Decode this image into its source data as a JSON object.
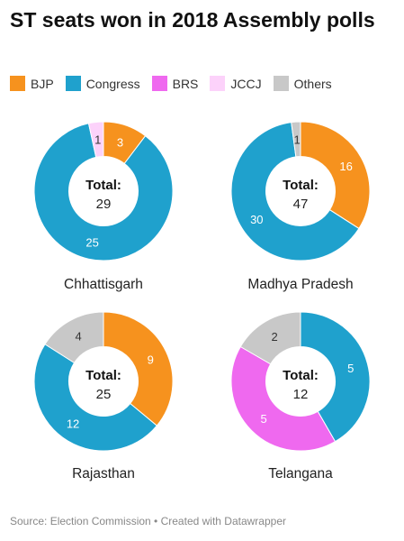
{
  "title": "ST seats won in 2018 Assembly polls",
  "legend": [
    {
      "name": "BJP",
      "color": "#f6921e"
    },
    {
      "name": "Congress",
      "color": "#1fa1cd"
    },
    {
      "name": "BRS",
      "color": "#ef69ef"
    },
    {
      "name": "JCCJ",
      "color": "#fcd2fa"
    },
    {
      "name": "Others",
      "color": "#c8c8c8"
    }
  ],
  "total_label": "Total:",
  "chart_data": [
    {
      "type": "pie",
      "state": "Chhattisgarh",
      "total": 29,
      "slices": [
        {
          "party": "BJP",
          "value": 3,
          "color": "#f6921e"
        },
        {
          "party": "Congress",
          "value": 25,
          "color": "#1fa1cd"
        },
        {
          "party": "JCCJ",
          "value": 1,
          "color": "#fcd2fa"
        }
      ]
    },
    {
      "type": "pie",
      "state": "Madhya Pradesh",
      "total": 47,
      "slices": [
        {
          "party": "BJP",
          "value": 16,
          "color": "#f6921e"
        },
        {
          "party": "Congress",
          "value": 30,
          "color": "#1fa1cd"
        },
        {
          "party": "Others",
          "value": 1,
          "color": "#c8c8c8"
        }
      ]
    },
    {
      "type": "pie",
      "state": "Rajasthan",
      "total": 25,
      "slices": [
        {
          "party": "BJP",
          "value": 9,
          "color": "#f6921e"
        },
        {
          "party": "Congress",
          "value": 12,
          "color": "#1fa1cd"
        },
        {
          "party": "Others",
          "value": 4,
          "color": "#c8c8c8"
        }
      ]
    },
    {
      "type": "pie",
      "state": "Telangana",
      "total": 12,
      "slices": [
        {
          "party": "Congress",
          "value": 5,
          "color": "#1fa1cd"
        },
        {
          "party": "BRS",
          "value": 5,
          "color": "#ef69ef"
        },
        {
          "party": "Others",
          "value": 2,
          "color": "#c8c8c8"
        }
      ]
    }
  ],
  "footer": "Source: Election Commission • Created with Datawrapper"
}
